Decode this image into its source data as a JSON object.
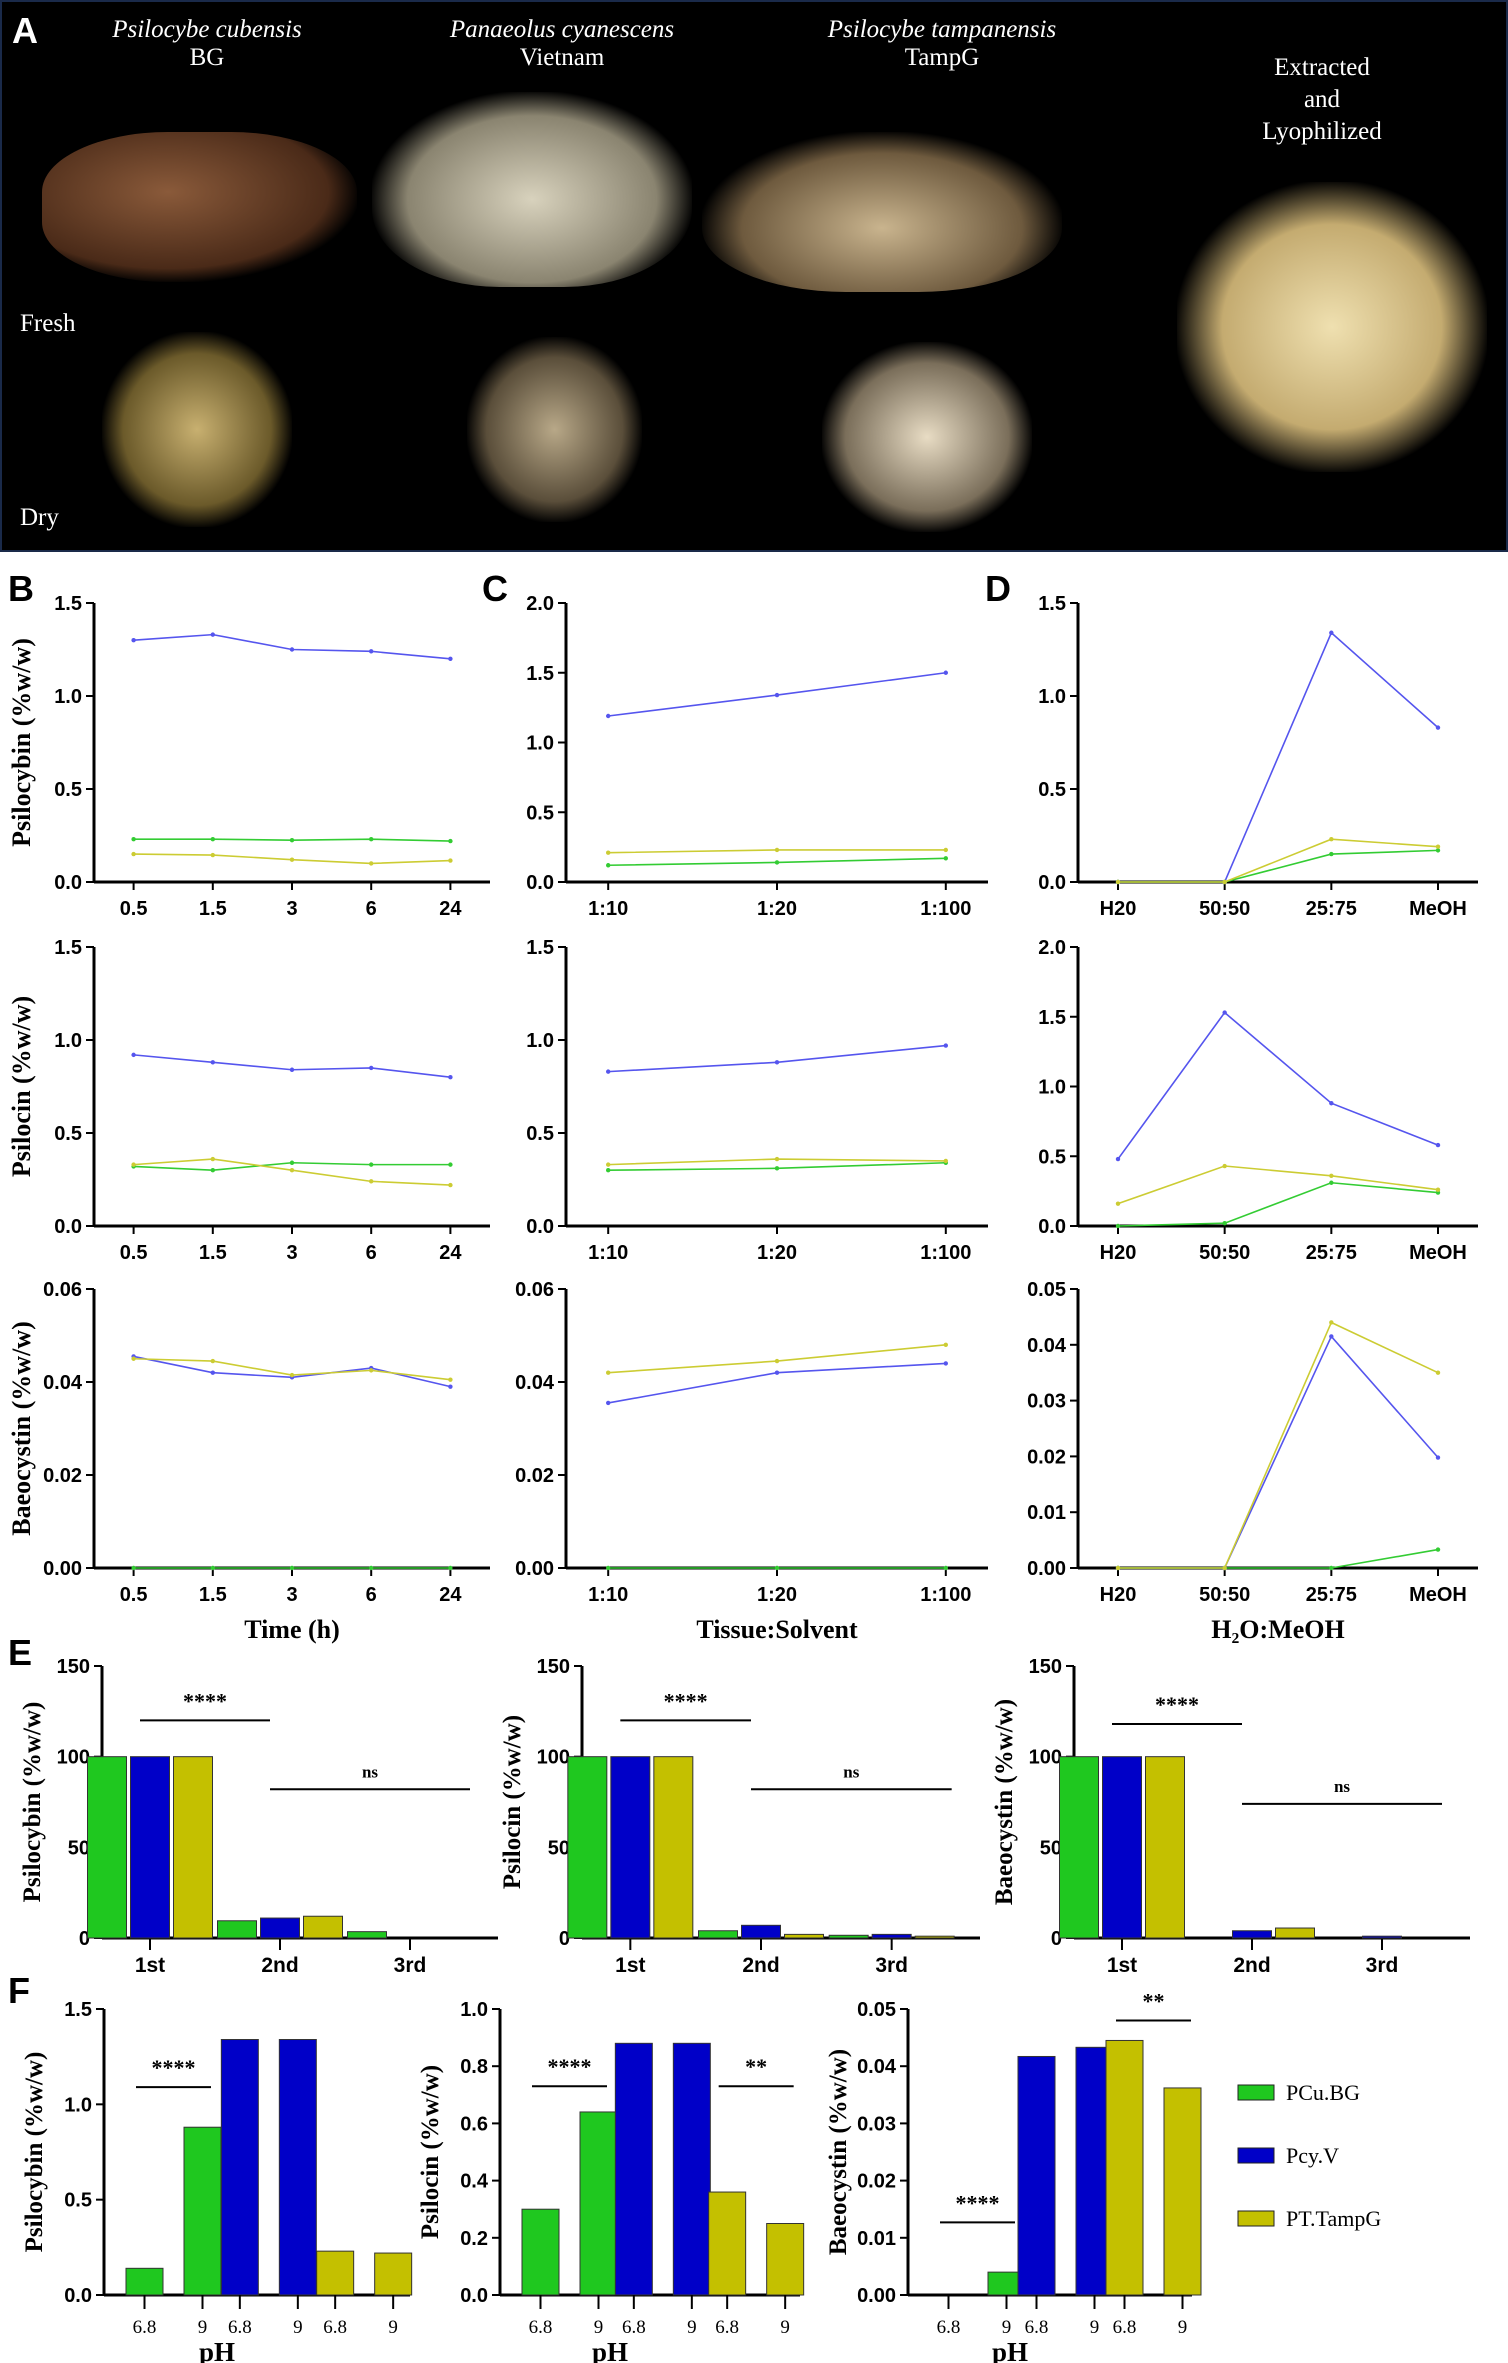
{
  "panel_a": {
    "letter": "A",
    "species": [
      {
        "name": "Psilocybe cubensis",
        "strain": "BG"
      },
      {
        "name": "Panaeolus cyanescens",
        "strain": "Vietnam"
      },
      {
        "name": "Psilocybe tampanensis",
        "strain": "TampG"
      }
    ],
    "extracted_label": [
      "Extracted",
      "and",
      "Lyophilized"
    ],
    "fresh_label": "Fresh",
    "dry_label": "Dry"
  },
  "panel_letters": {
    "b": "B",
    "c": "C",
    "d": "D",
    "e": "E",
    "f": "F"
  },
  "colors": {
    "PCu.BG": "#1fc81f",
    "Pcy.V": "#0000c8",
    "PT.TampG": "#c4c000",
    "line_PCu.BG": "#33cc33",
    "line_Pcy.V": "#5555ee",
    "line_PT.TampG": "#cccc33"
  },
  "legend": [
    {
      "name": "PCu.BG",
      "color": "#1fc81f"
    },
    {
      "name": "Pcy.V",
      "color": "#0000c8"
    },
    {
      "name": "PT.TampG",
      "color": "#c4c000"
    }
  ],
  "chart_data": [
    {
      "panel": "B",
      "type": "line",
      "ylabel": "Psilocybin (%w/w)",
      "xlabel": "",
      "categories": [
        "0.5",
        "1.5",
        "3",
        "6",
        "24"
      ],
      "ylim": [
        0,
        1.5
      ],
      "yticks": [
        "0.0",
        "0.5",
        "1.0",
        "1.5"
      ],
      "series": [
        {
          "name": "Pcy.V",
          "values": [
            1.3,
            1.33,
            1.25,
            1.24,
            1.2
          ]
        },
        {
          "name": "PCu.BG",
          "values": [
            0.23,
            0.23,
            0.225,
            0.23,
            0.22
          ]
        },
        {
          "name": "PT.TampG",
          "values": [
            0.15,
            0.145,
            0.12,
            0.1,
            0.115
          ]
        }
      ]
    },
    {
      "panel": "C",
      "type": "line",
      "ylabel": "",
      "xlabel": "",
      "categories": [
        "1:10",
        "1:20",
        "1:100"
      ],
      "ylim": [
        0,
        2.0
      ],
      "yticks": [
        "0.0",
        "0.5",
        "1.0",
        "1.5",
        "2.0"
      ],
      "series": [
        {
          "name": "Pcy.V",
          "values": [
            1.19,
            1.34,
            1.5
          ]
        },
        {
          "name": "PCu.BG",
          "values": [
            0.12,
            0.14,
            0.17
          ]
        },
        {
          "name": "PT.TampG",
          "values": [
            0.21,
            0.23,
            0.23
          ]
        }
      ]
    },
    {
      "panel": "D",
      "type": "line",
      "ylabel": "",
      "xlabel": "",
      "categories": [
        "H20",
        "50:50",
        "25:75",
        "MeOH"
      ],
      "ylim": [
        0,
        1.5
      ],
      "yticks": [
        "0.0",
        "0.5",
        "1.0",
        "1.5"
      ],
      "series": [
        {
          "name": "Pcy.V",
          "values": [
            0,
            0,
            1.34,
            0.83
          ]
        },
        {
          "name": "PCu.BG",
          "values": [
            0,
            0,
            0.15,
            0.17
          ]
        },
        {
          "name": "PT.TampG",
          "values": [
            0,
            0,
            0.23,
            0.19
          ]
        }
      ]
    },
    {
      "panel": "B",
      "type": "line",
      "ylabel": "Psilocin (%w/w)",
      "xlabel": "",
      "categories": [
        "0.5",
        "1.5",
        "3",
        "6",
        "24"
      ],
      "ylim": [
        0,
        1.5
      ],
      "yticks": [
        "0.0",
        "0.5",
        "1.0",
        "1.5"
      ],
      "series": [
        {
          "name": "Pcy.V",
          "values": [
            0.92,
            0.88,
            0.84,
            0.85,
            0.8
          ]
        },
        {
          "name": "PCu.BG",
          "values": [
            0.32,
            0.3,
            0.34,
            0.33,
            0.33
          ]
        },
        {
          "name": "PT.TampG",
          "values": [
            0.33,
            0.36,
            0.3,
            0.24,
            0.22
          ]
        }
      ]
    },
    {
      "panel": "C",
      "type": "line",
      "ylabel": "",
      "xlabel": "",
      "categories": [
        "1:10",
        "1:20",
        "1:100"
      ],
      "ylim": [
        0,
        1.5
      ],
      "yticks": [
        "0.0",
        "0.5",
        "1.0",
        "1.5"
      ],
      "series": [
        {
          "name": "Pcy.V",
          "values": [
            0.83,
            0.88,
            0.97
          ]
        },
        {
          "name": "PCu.BG",
          "values": [
            0.3,
            0.31,
            0.34
          ]
        },
        {
          "name": "PT.TampG",
          "values": [
            0.33,
            0.36,
            0.35
          ]
        }
      ]
    },
    {
      "panel": "D",
      "type": "line",
      "ylabel": "",
      "xlabel": "",
      "categories": [
        "H20",
        "50:50",
        "25:75",
        "MeOH"
      ],
      "ylim": [
        0,
        2.0
      ],
      "yticks": [
        "0.0",
        "0.5",
        "1.0",
        "1.5",
        "2.0"
      ],
      "series": [
        {
          "name": "Pcy.V",
          "values": [
            0.48,
            1.53,
            0.88,
            0.58
          ]
        },
        {
          "name": "PCu.BG",
          "values": [
            0,
            0.02,
            0.31,
            0.24
          ]
        },
        {
          "name": "PT.TampG",
          "values": [
            0.16,
            0.43,
            0.36,
            0.26
          ]
        }
      ]
    },
    {
      "panel": "B",
      "type": "line",
      "ylabel": "Baeocystin (%w/w)",
      "xlabel": "Time (h)",
      "categories": [
        "0.5",
        "1.5",
        "3",
        "6",
        "24"
      ],
      "ylim": [
        0,
        0.06
      ],
      "yticks": [
        "0.00",
        "0.02",
        "0.04",
        "0.06"
      ],
      "series": [
        {
          "name": "Pcy.V",
          "values": [
            0.0455,
            0.042,
            0.041,
            0.043,
            0.039
          ]
        },
        {
          "name": "PCu.BG",
          "values": [
            0,
            0,
            0,
            0,
            0
          ]
        },
        {
          "name": "PT.TampG",
          "values": [
            0.045,
            0.0445,
            0.0415,
            0.0425,
            0.0405
          ]
        }
      ]
    },
    {
      "panel": "C",
      "type": "line",
      "ylabel": "",
      "xlabel": "Tissue:Solvent",
      "categories": [
        "1:10",
        "1:20",
        "1:100"
      ],
      "ylim": [
        0,
        0.06
      ],
      "yticks": [
        "0.00",
        "0.02",
        "0.04",
        "0.06"
      ],
      "series": [
        {
          "name": "Pcy.V",
          "values": [
            0.0355,
            0.042,
            0.044
          ]
        },
        {
          "name": "PCu.BG",
          "values": [
            0,
            0,
            0
          ]
        },
        {
          "name": "PT.TampG",
          "values": [
            0.042,
            0.0445,
            0.048
          ]
        }
      ]
    },
    {
      "panel": "D",
      "type": "line",
      "ylabel": "",
      "xlabel": "H₂O:MeOH",
      "categories": [
        "H20",
        "50:50",
        "25:75",
        "MeOH"
      ],
      "ylim": [
        0,
        0.05
      ],
      "yticks": [
        "0.00",
        "0.01",
        "0.02",
        "0.03",
        "0.04",
        "0.05"
      ],
      "series": [
        {
          "name": "Pcy.V",
          "values": [
            0,
            0,
            0.0415,
            0.0198
          ]
        },
        {
          "name": "PCu.BG",
          "values": [
            0,
            0,
            0,
            0.0033
          ]
        },
        {
          "name": "PT.TampG",
          "values": [
            0,
            0,
            0.044,
            0.035
          ]
        }
      ]
    },
    {
      "panel": "E",
      "type": "bar",
      "ylabel": "Psilocybin (%w/w)",
      "xlabel": "",
      "categories": [
        "1st",
        "2nd",
        "3rd"
      ],
      "ylim": [
        0,
        150
      ],
      "yticks": [
        "0",
        "50",
        "100",
        "150"
      ],
      "series": [
        {
          "name": "PCu.BG",
          "values": [
            100,
            9.5,
            3.5
          ]
        },
        {
          "name": "Pcy.V",
          "values": [
            100,
            11,
            0
          ]
        },
        {
          "name": "PT.TampG",
          "values": [
            100,
            12,
            0
          ]
        }
      ],
      "annotations": [
        {
          "text": "****",
          "from": 0,
          "to": 1,
          "level": 120
        },
        {
          "text": "ns",
          "from": 1,
          "to": 2,
          "level": 82
        }
      ]
    },
    {
      "panel": "E",
      "type": "bar",
      "ylabel": "Psilocin (%w/w)",
      "xlabel": "",
      "categories": [
        "1st",
        "2nd",
        "3rd"
      ],
      "ylim": [
        0,
        150
      ],
      "yticks": [
        "0",
        "50",
        "100",
        "150"
      ],
      "series": [
        {
          "name": "PCu.BG",
          "values": [
            100,
            4,
            1.5
          ]
        },
        {
          "name": "Pcy.V",
          "values": [
            100,
            7,
            2
          ]
        },
        {
          "name": "PT.TampG",
          "values": [
            100,
            2,
            1
          ]
        }
      ],
      "annotations": [
        {
          "text": "****",
          "from": 0,
          "to": 1,
          "level": 120
        },
        {
          "text": "ns",
          "from": 1,
          "to": 2,
          "level": 82
        }
      ]
    },
    {
      "panel": "E",
      "type": "bar",
      "ylabel": "Baeocystin (%w/w)",
      "xlabel": "",
      "categories": [
        "1st",
        "2nd",
        "3rd"
      ],
      "ylim": [
        0,
        150
      ],
      "yticks": [
        "0",
        "50",
        "100",
        "150"
      ],
      "series": [
        {
          "name": "PCu.BG",
          "values": [
            100,
            0,
            0
          ]
        },
        {
          "name": "Pcy.V",
          "values": [
            100,
            4,
            1
          ]
        },
        {
          "name": "PT.TampG",
          "values": [
            100,
            5.5,
            0
          ]
        }
      ],
      "annotations": [
        {
          "text": "****",
          "from": 0,
          "to": 1,
          "level": 118
        },
        {
          "text": "ns",
          "from": 1,
          "to": 2,
          "level": 74
        }
      ]
    },
    {
      "panel": "F",
      "type": "bar",
      "ylabel": "Psilocybin (%w/w)",
      "xlabel": "pH",
      "categories": [
        "6.8",
        "9"
      ],
      "ylim": [
        0,
        1.5
      ],
      "yticks": [
        "0.0",
        "0.5",
        "1.0",
        "1.5"
      ],
      "series": [
        {
          "name": "PCu.BG",
          "values": [
            0.14,
            0.88
          ]
        },
        {
          "name": "Pcy.V",
          "values": [
            1.34,
            1.34
          ]
        },
        {
          "name": "PT.TampG",
          "values": [
            0.23,
            0.22
          ]
        }
      ],
      "annotations": [
        {
          "text": "****",
          "series": 0,
          "level": 1.09
        }
      ]
    },
    {
      "panel": "F",
      "type": "bar",
      "ylabel": "Psilocin (%w/w)",
      "xlabel": "pH",
      "categories": [
        "6.8",
        "9"
      ],
      "ylim": [
        0,
        1.0
      ],
      "yticks": [
        "0.0",
        "0.2",
        "0.4",
        "0.6",
        "0.8",
        "1.0"
      ],
      "series": [
        {
          "name": "PCu.BG",
          "values": [
            0.3,
            0.64
          ]
        },
        {
          "name": "Pcy.V",
          "values": [
            0.88,
            0.88
          ]
        },
        {
          "name": "PT.TampG",
          "values": [
            0.36,
            0.25
          ]
        }
      ],
      "annotations": [
        {
          "text": "****",
          "series": 0,
          "level": 0.73
        },
        {
          "text": "**",
          "series": 2,
          "level": 0.73
        }
      ]
    },
    {
      "panel": "F",
      "type": "bar",
      "ylabel": "Baeocystin (%w/w)",
      "xlabel": "pH",
      "categories": [
        "6.8",
        "9"
      ],
      "ylim": [
        0,
        0.05
      ],
      "yticks": [
        "0.00",
        "0.01",
        "0.02",
        "0.03",
        "0.04",
        "0.05"
      ],
      "series": [
        {
          "name": "PCu.BG",
          "values": [
            0,
            0.004
          ]
        },
        {
          "name": "Pcy.V",
          "values": [
            0.0417,
            0.0433
          ]
        },
        {
          "name": "PT.TampG",
          "values": [
            0.0445,
            0.0362
          ]
        }
      ],
      "annotations": [
        {
          "text": "****",
          "series": 0,
          "level": 0.0127
        },
        {
          "text": "**",
          "series": 2,
          "level": 0.048
        }
      ]
    }
  ]
}
